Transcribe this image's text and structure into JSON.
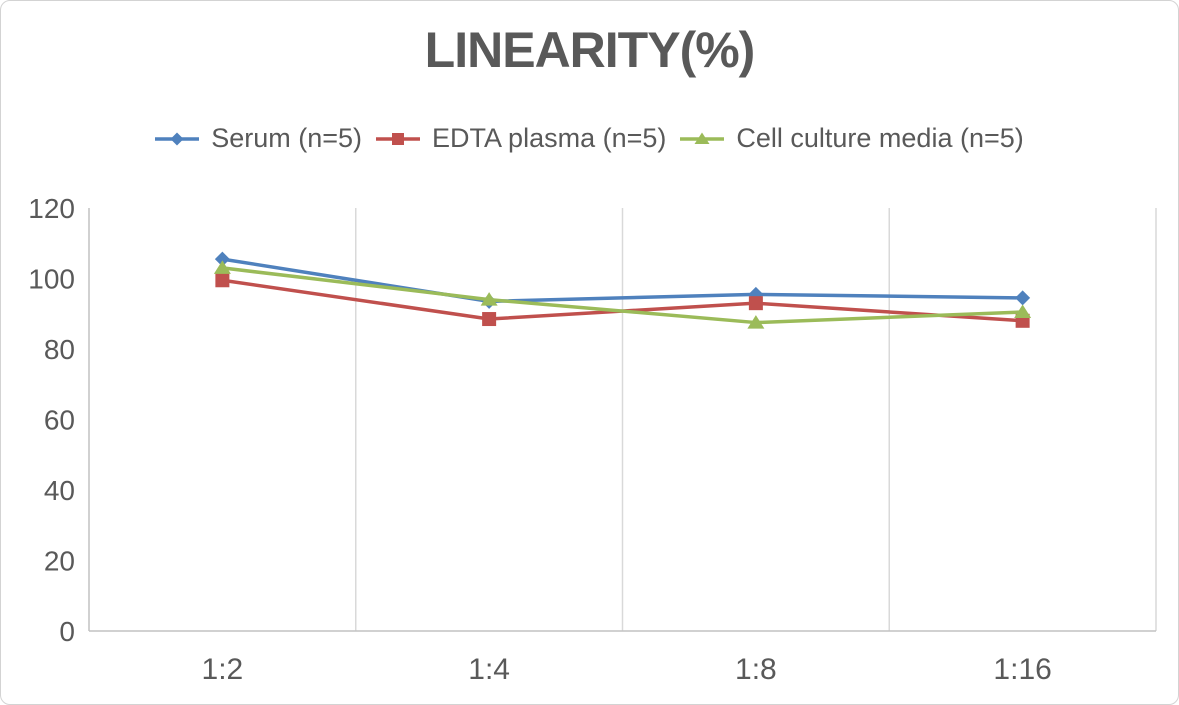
{
  "page": {
    "background": "#ffffff",
    "border_color": "#d3d3d3"
  },
  "chart_data": {
    "type": "line",
    "title": "LINEARITY(%)",
    "categories": [
      "1:2",
      "1:4",
      "1:8",
      "1:16"
    ],
    "series": [
      {
        "name": "Serum (n=5)",
        "color": "#4F81BD",
        "marker": "diamond",
        "values": [
          105.5,
          93.5,
          95.5,
          94.5
        ]
      },
      {
        "name": "EDTA plasma (n=5)",
        "color": "#C0504D",
        "marker": "square",
        "values": [
          99.5,
          88.5,
          93,
          88
        ]
      },
      {
        "name": "Cell culture media (n=5)",
        "color": "#9BBB59",
        "marker": "triangle",
        "values": [
          103,
          94,
          87.5,
          90.5
        ]
      }
    ],
    "xlabel": "",
    "ylabel": "",
    "ylim": [
      0,
      120
    ],
    "yticks": [
      0,
      20,
      40,
      60,
      80,
      100,
      120
    ],
    "grid": "vertical-category-boundaries-only",
    "legend_position": "top",
    "style": {
      "text_color": "#595959",
      "gridline_color": "#D9D9D9",
      "axis_color": "#C2C2C2"
    }
  }
}
